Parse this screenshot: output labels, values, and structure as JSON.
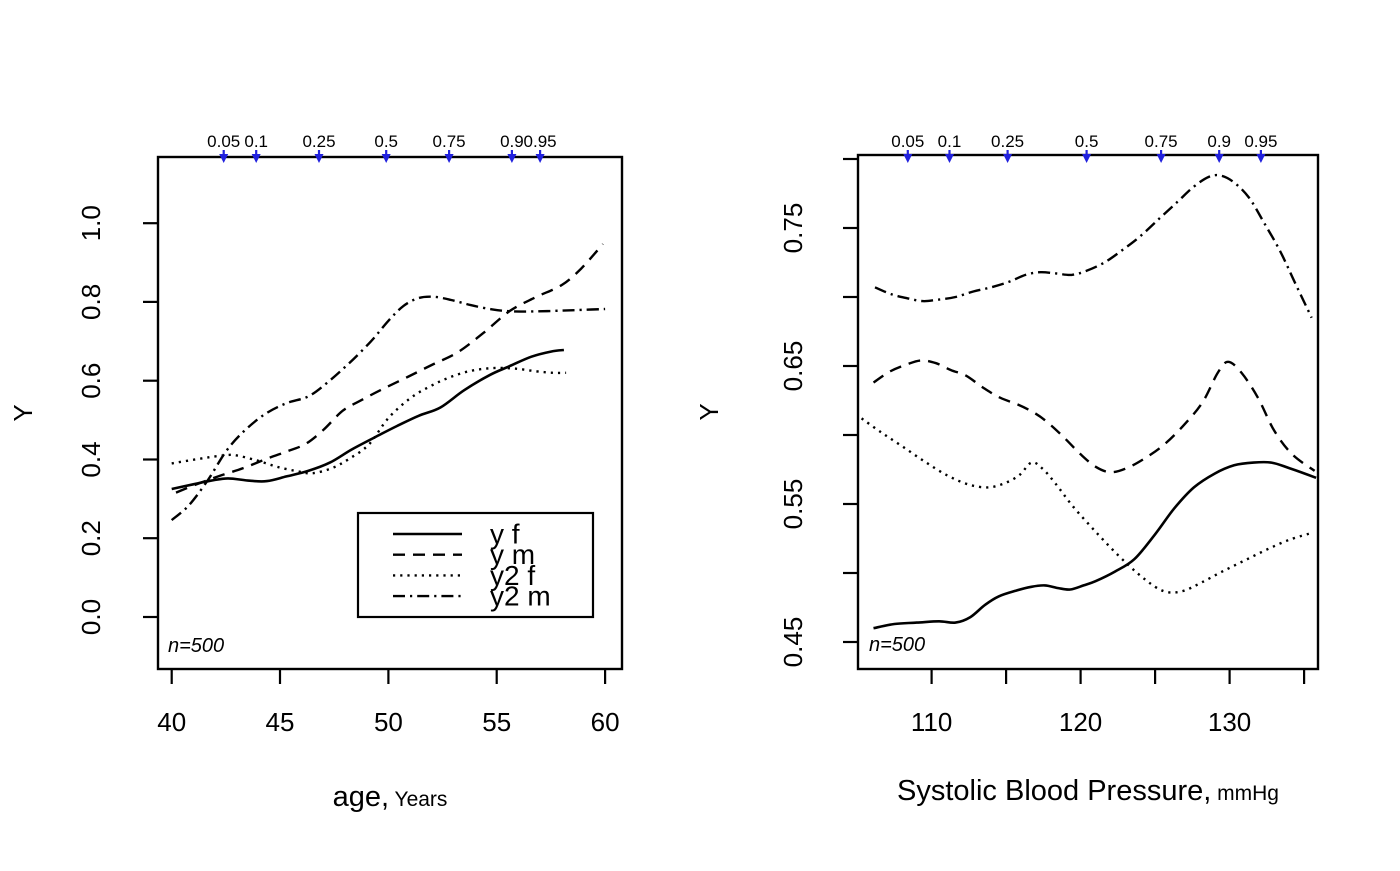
{
  "figure": {
    "background": "#ffffff",
    "ink_color": "#000000",
    "arrow_color": "#2121de"
  },
  "chart_data": [
    {
      "id": "age-panel",
      "type": "line",
      "title": "",
      "xlabel": "age,",
      "xlabel_unit": "Years",
      "ylabel": "Y",
      "xlim": [
        39.37,
        60.78
      ],
      "ylim": [
        -0.132,
        1.168
      ],
      "grid": false,
      "sample_annotation": "n=500",
      "x_ticks": [
        {
          "v": 40,
          "label": "40"
        },
        {
          "v": 45,
          "label": "45"
        },
        {
          "v": 50,
          "label": "50"
        },
        {
          "v": 55,
          "label": "55"
        },
        {
          "v": 60,
          "label": "60"
        }
      ],
      "y_ticks": [
        {
          "v": 0.0,
          "label": "0.0"
        },
        {
          "v": 0.2,
          "label": "0.2"
        },
        {
          "v": 0.4,
          "label": "0.4"
        },
        {
          "v": 0.6,
          "label": "0.6"
        },
        {
          "v": 0.8,
          "label": "0.8"
        },
        {
          "v": 1.0,
          "label": "1.0"
        }
      ],
      "quantile_arrows": [
        {
          "q": "0.05",
          "x": 42.4
        },
        {
          "q": "0.1",
          "x": 43.9
        },
        {
          "q": "0.25",
          "x": 46.8
        },
        {
          "q": "0.5",
          "x": 49.9
        },
        {
          "q": "0.75",
          "x": 52.8
        },
        {
          "q": "0.9",
          "x": 55.7
        },
        {
          "q": "0.95",
          "x": 57.0
        }
      ],
      "legend": {
        "position": "inside-bottom-right",
        "items": [
          {
            "label": "y f",
            "style": "solid"
          },
          {
            "label": "y m",
            "style": "dash"
          },
          {
            "label": "y2 f",
            "style": "dot"
          },
          {
            "label": "y2 m",
            "style": "dashdot"
          }
        ]
      },
      "series": [
        {
          "name": "y f",
          "style": "solid",
          "points": [
            [
              40,
              0.325
            ],
            [
              41,
              0.337
            ],
            [
              41.8,
              0.346
            ],
            [
              42.6,
              0.352
            ],
            [
              43.6,
              0.346
            ],
            [
              44.4,
              0.345
            ],
            [
              45.3,
              0.357
            ],
            [
              46.3,
              0.371
            ],
            [
              47.3,
              0.392
            ],
            [
              48.3,
              0.425
            ],
            [
              49.4,
              0.457
            ],
            [
              50.4,
              0.485
            ],
            [
              51.4,
              0.511
            ],
            [
              52.4,
              0.532
            ],
            [
              53.5,
              0.576
            ],
            [
              54.7,
              0.615
            ],
            [
              55.6,
              0.637
            ],
            [
              56.6,
              0.661
            ],
            [
              57.5,
              0.674
            ],
            [
              58.1,
              0.678
            ]
          ]
        },
        {
          "name": "y m",
          "style": "dash",
          "points": [
            [
              40.2,
              0.316
            ],
            [
              41.2,
              0.338
            ],
            [
              42.2,
              0.358
            ],
            [
              43.3,
              0.378
            ],
            [
              44.4,
              0.402
            ],
            [
              45.4,
              0.422
            ],
            [
              46.2,
              0.44
            ],
            [
              47.0,
              0.475
            ],
            [
              47.9,
              0.524
            ],
            [
              48.8,
              0.552
            ],
            [
              49.7,
              0.578
            ],
            [
              50.8,
              0.607
            ],
            [
              52.0,
              0.64
            ],
            [
              53.2,
              0.672
            ],
            [
              54.4,
              0.722
            ],
            [
              55.6,
              0.777
            ],
            [
              56.8,
              0.812
            ],
            [
              58.0,
              0.843
            ],
            [
              58.9,
              0.885
            ],
            [
              59.9,
              0.947
            ]
          ]
        },
        {
          "name": "y2 f",
          "style": "dot",
          "points": [
            [
              40,
              0.39
            ],
            [
              41.2,
              0.401
            ],
            [
              42.2,
              0.409
            ],
            [
              42.9,
              0.411
            ],
            [
              43.9,
              0.398
            ],
            [
              44.9,
              0.381
            ],
            [
              45.9,
              0.369
            ],
            [
              46.5,
              0.365
            ],
            [
              47.4,
              0.378
            ],
            [
              48.2,
              0.402
            ],
            [
              49.1,
              0.438
            ],
            [
              50.0,
              0.505
            ],
            [
              51.0,
              0.555
            ],
            [
              51.9,
              0.585
            ],
            [
              52.8,
              0.608
            ],
            [
              53.8,
              0.625
            ],
            [
              54.8,
              0.632
            ],
            [
              55.8,
              0.631
            ],
            [
              56.8,
              0.624
            ],
            [
              57.6,
              0.62
            ],
            [
              58.2,
              0.62
            ]
          ]
        },
        {
          "name": "y2 m",
          "style": "dashdot",
          "points": [
            [
              40.0,
              0.246
            ],
            [
              40.8,
              0.284
            ],
            [
              41.7,
              0.35
            ],
            [
              42.5,
              0.42
            ],
            [
              43.3,
              0.47
            ],
            [
              44.3,
              0.515
            ],
            [
              45.3,
              0.543
            ],
            [
              46.3,
              0.56
            ],
            [
              47.2,
              0.596
            ],
            [
              48.2,
              0.645
            ],
            [
              49.2,
              0.7
            ],
            [
              50.0,
              0.752
            ],
            [
              50.7,
              0.79
            ],
            [
              51.4,
              0.81
            ],
            [
              52.1,
              0.813
            ],
            [
              52.9,
              0.805
            ],
            [
              53.8,
              0.792
            ],
            [
              54.8,
              0.781
            ],
            [
              55.7,
              0.776
            ],
            [
              56.8,
              0.776
            ],
            [
              58.0,
              0.778
            ],
            [
              59.0,
              0.78
            ],
            [
              60.0,
              0.782
            ]
          ]
        }
      ]
    },
    {
      "id": "sbp-panel",
      "type": "line",
      "title": "",
      "xlabel": "Systolic Blood Pressure,",
      "xlabel_unit": "mmHg",
      "ylabel": "Y",
      "xlim": [
        105.06,
        135.93
      ],
      "ylim": [
        0.4304,
        0.8029
      ],
      "grid": false,
      "sample_annotation": "n=500",
      "x_ticks": [
        {
          "v": 110,
          "label": "110"
        },
        {
          "v": 115,
          "label": ""
        },
        {
          "v": 120,
          "label": "120"
        },
        {
          "v": 125,
          "label": ""
        },
        {
          "v": 130,
          "label": "130"
        },
        {
          "v": 135,
          "label": ""
        }
      ],
      "y_ticks": [
        {
          "v": 0.45,
          "label": "0.45"
        },
        {
          "v": 0.5,
          "label": ""
        },
        {
          "v": 0.55,
          "label": "0.55"
        },
        {
          "v": 0.6,
          "label": ""
        },
        {
          "v": 0.65,
          "label": "0.65"
        },
        {
          "v": 0.7,
          "label": ""
        },
        {
          "v": 0.75,
          "label": "0.75"
        },
        {
          "v": 0.8,
          "label": ""
        }
      ],
      "quantile_arrows": [
        {
          "q": "0.05",
          "x": 108.4
        },
        {
          "q": "0.1",
          "x": 111.2
        },
        {
          "q": "0.25",
          "x": 115.1
        },
        {
          "q": "0.5",
          "x": 120.4
        },
        {
          "q": "0.75",
          "x": 125.4
        },
        {
          "q": "0.9",
          "x": 129.3
        },
        {
          "q": "0.95",
          "x": 132.1
        }
      ],
      "series": [
        {
          "name": "y f",
          "style": "solid",
          "points": [
            [
              106.1,
              0.46
            ],
            [
              107.5,
              0.463
            ],
            [
              109,
              0.464
            ],
            [
              110.5,
              0.465
            ],
            [
              111.6,
              0.464
            ],
            [
              112.6,
              0.468
            ],
            [
              113.6,
              0.477
            ],
            [
              114.5,
              0.483
            ],
            [
              115.6,
              0.487
            ],
            [
              116.7,
              0.49
            ],
            [
              117.6,
              0.491
            ],
            [
              118.5,
              0.489
            ],
            [
              119.3,
              0.488
            ],
            [
              120.2,
              0.491
            ],
            [
              121,
              0.494
            ],
            [
              122.3,
              0.501
            ],
            [
              123.6,
              0.51
            ],
            [
              125,
              0.528
            ],
            [
              126.3,
              0.547
            ],
            [
              127.6,
              0.562
            ],
            [
              129,
              0.572
            ],
            [
              130.3,
              0.578
            ],
            [
              131.6,
              0.58
            ],
            [
              132.8,
              0.58
            ],
            [
              134,
              0.576
            ],
            [
              135.8,
              0.569
            ]
          ]
        },
        {
          "name": "y m",
          "style": "dash",
          "points": [
            [
              106.1,
              0.638
            ],
            [
              107.2,
              0.646
            ],
            [
              108.3,
              0.651
            ],
            [
              109.3,
              0.654
            ],
            [
              110.3,
              0.652
            ],
            [
              111.3,
              0.647
            ],
            [
              112.3,
              0.643
            ],
            [
              113.5,
              0.634
            ],
            [
              114.6,
              0.627
            ],
            [
              115.8,
              0.622
            ],
            [
              116.9,
              0.616
            ],
            [
              117.8,
              0.609
            ],
            [
              118.9,
              0.598
            ],
            [
              120,
              0.586
            ],
            [
              121,
              0.577
            ],
            [
              122,
              0.573
            ],
            [
              123.1,
              0.576
            ],
            [
              124.3,
              0.583
            ],
            [
              125.6,
              0.593
            ],
            [
              127,
              0.608
            ],
            [
              128.2,
              0.624
            ],
            [
              129.2,
              0.645
            ],
            [
              129.9,
              0.653
            ],
            [
              130.8,
              0.645
            ],
            [
              131.9,
              0.627
            ],
            [
              133,
              0.603
            ],
            [
              134.2,
              0.586
            ],
            [
              135.7,
              0.574
            ]
          ]
        },
        {
          "name": "y2 f",
          "style": "dot",
          "points": [
            [
              105.3,
              0.612
            ],
            [
              106.6,
              0.602
            ],
            [
              108,
              0.592
            ],
            [
              109.5,
              0.581
            ],
            [
              111,
              0.571
            ],
            [
              112.5,
              0.564
            ],
            [
              113.8,
              0.562
            ],
            [
              114.9,
              0.565
            ],
            [
              115.9,
              0.571
            ],
            [
              116.7,
              0.58
            ],
            [
              117.4,
              0.576
            ],
            [
              118.3,
              0.565
            ],
            [
              119.5,
              0.548
            ],
            [
              121,
              0.53
            ],
            [
              122.5,
              0.513
            ],
            [
              123.8,
              0.5
            ],
            [
              125,
              0.49
            ],
            [
              125.9,
              0.486
            ],
            [
              126.9,
              0.487
            ],
            [
              128.1,
              0.493
            ],
            [
              129.5,
              0.501
            ],
            [
              131,
              0.509
            ],
            [
              132.5,
              0.517
            ],
            [
              134,
              0.524
            ],
            [
              135.5,
              0.529
            ]
          ]
        },
        {
          "name": "y2 m",
          "style": "dashdot",
          "points": [
            [
              106.2,
              0.707
            ],
            [
              107.3,
              0.702
            ],
            [
              108.4,
              0.699
            ],
            [
              109.4,
              0.697
            ],
            [
              110.4,
              0.698
            ],
            [
              111.6,
              0.7
            ],
            [
              112.8,
              0.704
            ],
            [
              114,
              0.707
            ],
            [
              115.2,
              0.711
            ],
            [
              116.3,
              0.716
            ],
            [
              117.3,
              0.718
            ],
            [
              118.4,
              0.717
            ],
            [
              119.4,
              0.716
            ],
            [
              120.4,
              0.719
            ],
            [
              121.6,
              0.725
            ],
            [
              122.8,
              0.734
            ],
            [
              124,
              0.744
            ],
            [
              125.3,
              0.757
            ],
            [
              126.5,
              0.769
            ],
            [
              127.6,
              0.78
            ],
            [
              128.6,
              0.787
            ],
            [
              129.4,
              0.788
            ],
            [
              130.3,
              0.783
            ],
            [
              131.3,
              0.772
            ],
            [
              132.3,
              0.754
            ],
            [
              133.4,
              0.733
            ],
            [
              134.4,
              0.71
            ],
            [
              135.5,
              0.685
            ]
          ]
        }
      ]
    }
  ]
}
